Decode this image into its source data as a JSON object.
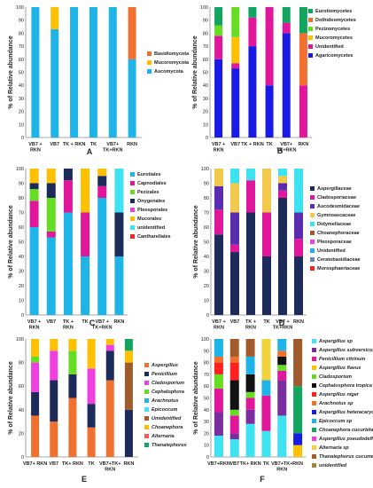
{
  "chart_data": [
    {
      "panel": "A",
      "type": "bar",
      "stacked": true,
      "ylabel": "% of Relative abundance",
      "ylim": [
        0,
        100
      ],
      "yticks": [
        0,
        10,
        20,
        30,
        40,
        50,
        60,
        70,
        80,
        90,
        100
      ],
      "categories": [
        "VB7 +\nRKN",
        "VB7",
        "TK + RKN",
        "TK",
        "VB7+\nTK+RKN",
        "RKN"
      ],
      "series": [
        {
          "name": "Ascomycota",
          "color": "#1FB4E8",
          "values": [
            100,
            83,
            100,
            100,
            100,
            60
          ]
        },
        {
          "name": "Mucoromycota",
          "color": "#FFC000",
          "values": [
            0,
            17,
            0,
            0,
            0,
            0
          ]
        },
        {
          "name": "Basidiomycota",
          "color": "#F07030",
          "values": [
            0,
            0,
            0,
            0,
            0,
            40
          ]
        }
      ],
      "legend": [
        "Basidiomycota",
        "Mucoromycota",
        "Ascomycota"
      ],
      "legend_position": "right"
    },
    {
      "panel": "B",
      "type": "bar",
      "stacked": true,
      "ylabel": "% of Relative abundance",
      "ylim": [
        0,
        100
      ],
      "yticks": [
        0,
        10,
        20,
        30,
        40,
        50,
        60,
        70,
        80,
        90,
        100
      ],
      "categories": [
        "VB7 +\nRKN",
        "VB7",
        "TK + RKN",
        "TK",
        "VB7+\nTK+RKN",
        "RKN"
      ],
      "series": [
        {
          "name": "Agaricomycetes",
          "color": "#1A1AE6",
          "values": [
            60,
            53,
            70,
            40,
            80,
            0
          ]
        },
        {
          "name": "Unidentified",
          "color": "#E0179B",
          "values": [
            18,
            4,
            22,
            60,
            8,
            40
          ]
        },
        {
          "name": "Mucoromycetes",
          "color": "#FFC000",
          "values": [
            0,
            20,
            0,
            0,
            0,
            0
          ]
        },
        {
          "name": "Pezizomycetes",
          "color": "#66DD22",
          "values": [
            8,
            23,
            0,
            0,
            0,
            0
          ]
        },
        {
          "name": "Dothideomycetes",
          "color": "#F07030",
          "values": [
            0,
            0,
            0,
            0,
            0,
            40
          ]
        },
        {
          "name": "Eurotiomycetes",
          "color": "#11A560",
          "values": [
            14,
            0,
            8,
            0,
            12,
            20
          ]
        }
      ],
      "legend": [
        "Eurotiomycetes",
        "Dothideomycetes",
        "Pezizomycetes",
        "Mucoromycetes",
        "Unidentified",
        "Agaricomycetes"
      ],
      "legend_position": "right"
    },
    {
      "panel": "C",
      "type": "bar",
      "stacked": true,
      "ylabel": "% of Relative abundance",
      "ylim": [
        0,
        100
      ],
      "yticks": [
        0,
        10,
        20,
        30,
        40,
        50,
        60,
        70,
        80,
        90,
        100
      ],
      "categories": [
        "VB7 +\nRKN",
        "VB7",
        "TK +\nRKN",
        "TK",
        "VB7 +\nTK+RKN",
        "RKN"
      ],
      "series": [
        {
          "name": "Eurotiales",
          "color": "#1FB4E8",
          "values": [
            60,
            53,
            70,
            40,
            80,
            40
          ]
        },
        {
          "name": "Capnodiales",
          "color": "#E0179B",
          "values": [
            18,
            4,
            22,
            30,
            8,
            0
          ]
        },
        {
          "name": "Pezizales",
          "color": "#66DD22",
          "values": [
            8,
            23,
            0,
            0,
            0,
            0
          ]
        },
        {
          "name": "Onygenales",
          "color": "#1C2B5A",
          "values": [
            4,
            10,
            8,
            0,
            7,
            30
          ]
        },
        {
          "name": "Pleosporales",
          "color": "#F03FE0",
          "values": [
            0,
            0,
            0,
            0,
            0,
            0
          ]
        },
        {
          "name": "Mucorales",
          "color": "#FFC000",
          "values": [
            10,
            10,
            0,
            30,
            5,
            0
          ]
        },
        {
          "name": "unidentified",
          "color": "#3DE3F0",
          "values": [
            0,
            0,
            0,
            0,
            0,
            30
          ]
        },
        {
          "name": "Cantharellales",
          "color": "#FF2020",
          "values": [
            0,
            0,
            0,
            0,
            0,
            0
          ]
        }
      ],
      "legend": [
        "Eurotiales",
        "Capnodiales",
        "Pezizales",
        "Onygenales",
        "Pleosporales",
        "Mucorales",
        "unidentified",
        "Cantharellales"
      ],
      "legend_position": "right"
    },
    {
      "panel": "D",
      "type": "bar",
      "stacked": true,
      "ylabel": "% of Relative abundance",
      "ylim": [
        0,
        100
      ],
      "yticks": [
        0,
        10,
        20,
        30,
        40,
        50,
        60,
        70,
        80,
        90,
        100
      ],
      "categories": [
        "VB7 +\nRKN",
        "VB7",
        "TK +\nRKN",
        "TK",
        "VB7 +\nTK+RKN",
        "RKN"
      ],
      "series": [
        {
          "name": "Aspergillaceae",
          "color": "#1C2B5A",
          "values": [
            55,
            43,
            70,
            40,
            80,
            40
          ]
        },
        {
          "name": "Cladosporiaceae",
          "color": "#E0179B",
          "values": [
            17,
            5,
            22,
            30,
            5,
            12
          ]
        },
        {
          "name": "Ascodesmidaceae",
          "color": "#5A2DB0",
          "values": [
            16,
            22,
            0,
            0,
            5,
            18
          ]
        },
        {
          "name": "Gymnoascaceae",
          "color": "#F2C94C",
          "values": [
            12,
            20,
            0,
            30,
            5,
            0
          ]
        },
        {
          "name": "Didymellaceae",
          "color": "#3DE3F0",
          "values": [
            0,
            10,
            8,
            0,
            5,
            30
          ]
        },
        {
          "name": "Choanephoraceae",
          "color": "#A05A2C",
          "values": [
            0,
            0,
            0,
            0,
            0,
            0
          ]
        },
        {
          "name": "Pleosporaceae",
          "color": "#F03FE0",
          "values": [
            0,
            0,
            0,
            0,
            0,
            0
          ]
        },
        {
          "name": "Unidentified",
          "color": "#1FB4E8",
          "values": [
            0,
            0,
            0,
            0,
            0,
            0
          ]
        },
        {
          "name": "Ceratobasidiaceae",
          "color": "#6A7FC4",
          "values": [
            0,
            0,
            0,
            0,
            0,
            0
          ]
        },
        {
          "name": "Morosphaeriaceae",
          "color": "#FF2020",
          "values": [
            0,
            0,
            0,
            0,
            0,
            0
          ]
        }
      ],
      "legend": [
        "Aspergillaceae",
        "Cladosporiaceae",
        "Ascodesmidaceae",
        "Gymnoascaceae",
        "Didymellaceae",
        "Choanephoraceae",
        "Pleosporaceae",
        "Unidentified",
        "Ceratobasidiaceae",
        "Morosphaeriaceae"
      ],
      "legend_position": "right"
    },
    {
      "panel": "E",
      "type": "bar",
      "stacked": true,
      "ylabel": "% of Relative abundance",
      "ylim": [
        0,
        100
      ],
      "yticks": [
        0,
        20,
        40,
        60,
        80,
        100
      ],
      "categories": [
        "VB7+ RKN",
        "VB7",
        "TK+ RKN",
        "TK",
        "VB7+TK+\nRKN",
        "RKN"
      ],
      "series": [
        {
          "name": "Aspergillus",
          "color": "#F07030",
          "values": [
            35,
            30,
            50,
            25,
            65,
            0
          ]
        },
        {
          "name": "Penicillium",
          "color": "#1C2B5A",
          "values": [
            20,
            35,
            20,
            20,
            25,
            40
          ]
        },
        {
          "name": "Cladosporium",
          "color": "#F03FE0",
          "values": [
            25,
            25,
            0,
            30,
            5,
            0
          ]
        },
        {
          "name": "Cephalophora",
          "color": "#66DD22",
          "values": [
            5,
            0,
            20,
            0,
            0,
            0
          ]
        },
        {
          "name": "Arachnotus",
          "color": "#1FB4E8",
          "values": [
            0,
            0,
            0,
            0,
            0,
            0
          ]
        },
        {
          "name": "Epicoccum",
          "color": "#3DE3F0",
          "values": [
            0,
            0,
            0,
            0,
            0,
            0
          ]
        },
        {
          "name": "Unidentified",
          "color": "#A05A2C",
          "values": [
            0,
            0,
            0,
            0,
            0,
            40
          ]
        },
        {
          "name": "Choanephora",
          "color": "#FFC000",
          "values": [
            15,
            10,
            10,
            25,
            5,
            10
          ]
        },
        {
          "name": "Alternaria",
          "color": "#FF5A5A",
          "values": [
            0,
            0,
            0,
            0,
            0,
            0
          ]
        },
        {
          "name": "Thanatephorus",
          "color": "#11A560",
          "values": [
            0,
            0,
            0,
            0,
            0,
            10
          ]
        }
      ],
      "legend": [
        "Aspergillus",
        "Penicillium",
        "Cladosporium",
        "Cephalophora",
        "Arachnotus",
        "Epicoccum",
        "Umidentified",
        "Choanephora",
        "Alternaria",
        "Thanatephorus"
      ],
      "legend_position": "right"
    },
    {
      "panel": "F",
      "type": "bar",
      "stacked": true,
      "ylabel": "% of Relative abundance",
      "ylim": [
        0,
        100
      ],
      "yticks": [
        0,
        10,
        20,
        30,
        40,
        50,
        60,
        70,
        80,
        90,
        100
      ],
      "categories": [
        "VB7+RKN",
        "VB7",
        "TK+ RKN",
        "TK",
        "VB7+TK+\nRKN",
        "RKN"
      ],
      "series": [
        {
          "name": "Aspergillus sp",
          "color": "#3DE3F0",
          "values": [
            18,
            15,
            28,
            22,
            35,
            0
          ]
        },
        {
          "name": "Aspergillus subversicolor",
          "color": "#7A2D9E",
          "values": [
            20,
            5,
            12,
            0,
            30,
            0
          ]
        },
        {
          "name": "Penicillium citrinum",
          "color": "#E0179B",
          "values": [
            20,
            15,
            10,
            30,
            8,
            0
          ]
        },
        {
          "name": "Aspergillus flavus",
          "color": "#FFC000",
          "values": [
            0,
            0,
            0,
            0,
            0,
            10
          ]
        },
        {
          "name": "Cladosporium",
          "color": "#66DD22",
          "values": [
            12,
            5,
            5,
            0,
            5,
            0
          ]
        },
        {
          "name": "Cephalosphora tropica",
          "color": "#111111",
          "values": [
            0,
            25,
            15,
            0,
            7,
            0
          ]
        },
        {
          "name": "Aspergillus niger",
          "color": "#FF2020",
          "values": [
            10,
            15,
            0,
            0,
            0,
            0
          ]
        },
        {
          "name": "Arachnotus sp",
          "color": "#F07030",
          "values": [
            5,
            5,
            0,
            0,
            5,
            0
          ]
        },
        {
          "name": "Aspergillus heteracaryoticus",
          "color": "#1A1AE6",
          "values": [
            0,
            0,
            0,
            0,
            0,
            10
          ]
        },
        {
          "name": "Epicoccum sp",
          "color": "#1FB4E8",
          "values": [
            15,
            0,
            15,
            13,
            10,
            0
          ]
        },
        {
          "name": "Choanephora cucurbitarum",
          "color": "#11A560",
          "values": [
            0,
            0,
            0,
            0,
            0,
            40
          ]
        },
        {
          "name": "Aspergillus pseudodeflectus",
          "color": "#F03FE0",
          "values": [
            0,
            0,
            0,
            0,
            0,
            0
          ]
        },
        {
          "name": "Alternaria sp",
          "color": "#F2D23C",
          "values": [
            0,
            0,
            0,
            35,
            0,
            0
          ]
        },
        {
          "name": "Thanatephorus cucumeris",
          "color": "#A05A2C",
          "values": [
            0,
            15,
            15,
            0,
            0,
            40
          ]
        },
        {
          "name": "unidentified",
          "color": "#A6843A",
          "values": [
            0,
            0,
            0,
            0,
            0,
            0
          ]
        }
      ],
      "legend": [
        "Aspergillus sp",
        "Aspergillus subversicolor",
        "Penicillium citrinum",
        "Aspergillus flavus",
        "Cladosporium",
        "Cephalosphora tropica",
        "Aspergillus niger",
        "Arachnotus sp",
        "Aspergillus heteracaryoticus",
        "Epicoccum sp",
        "Choanephora cucurbitarum",
        "Aspergillus pseudodeflectus",
        "Alternaria sp",
        "Thanatephorus cucumeris",
        "unidentified"
      ],
      "legend_position": "right"
    }
  ]
}
